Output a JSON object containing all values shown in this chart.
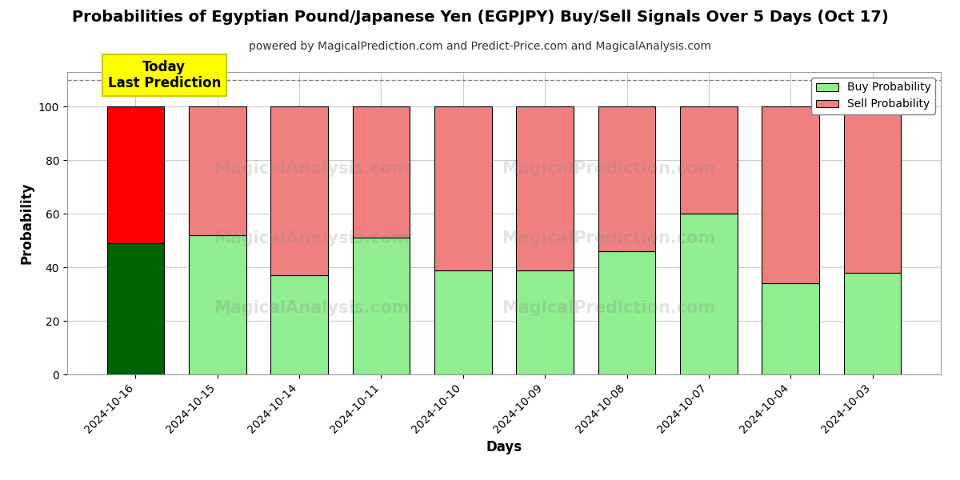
{
  "title": "Probabilities of Egyptian Pound/Japanese Yen (EGPJPY) Buy/Sell Signals Over 5 Days (Oct 17)",
  "subtitle": "powered by MagicalPrediction.com and Predict-Price.com and MagicalAnalysis.com",
  "xlabel": "Days",
  "ylabel": "Probability",
  "dates": [
    "2024-10-16",
    "2024-10-15",
    "2024-10-14",
    "2024-10-11",
    "2024-10-10",
    "2024-10-09",
    "2024-10-08",
    "2024-10-07",
    "2024-10-04",
    "2024-10-03"
  ],
  "buy_values": [
    49,
    52,
    37,
    51,
    39,
    39,
    46,
    60,
    34,
    38
  ],
  "sell_values": [
    51,
    48,
    63,
    49,
    61,
    61,
    54,
    40,
    66,
    62
  ],
  "today_buy_color": "#006400",
  "today_sell_color": "#ff0000",
  "buy_color": "#90EE90",
  "sell_color": "#F08080",
  "bar_edge_color": "#000000",
  "today_annotation": "Today\nLast Prediction",
  "annotation_bg": "#ffff00",
  "annotation_edge_color": "#cccc00",
  "legend_buy_label": "Buy Probability",
  "legend_sell_label": "Sell Probability",
  "ylim": [
    0,
    113
  ],
  "yticks": [
    0,
    20,
    40,
    60,
    80,
    100
  ],
  "dashed_line_y": 110,
  "background_color": "#ffffff",
  "grid_color": "#cccccc",
  "title_fontsize": 14,
  "subtitle_fontsize": 10
}
